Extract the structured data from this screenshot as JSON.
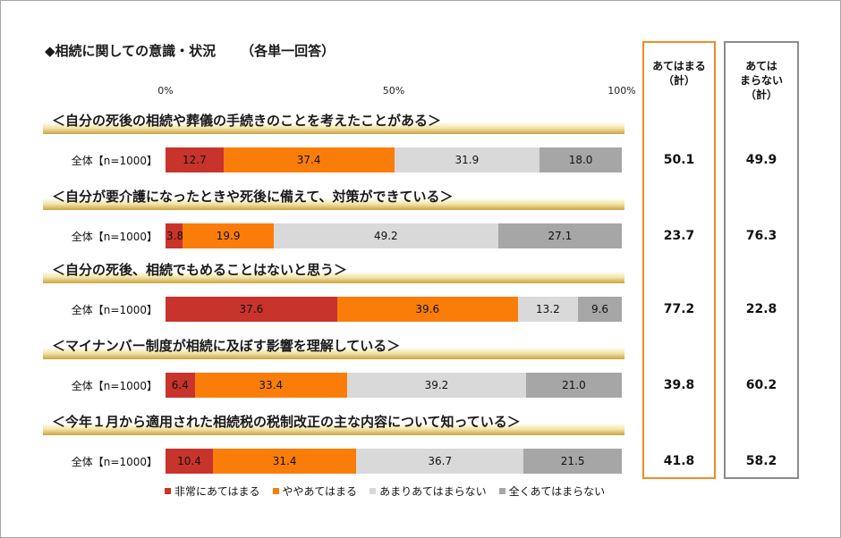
{
  "title": "◆相続に関しての意識・状況",
  "subtitle": "（各単一回答）",
  "summary_headers": {
    "applies_total": "あてはまる\n（計）",
    "not_applies_total": "あては\nまらない\n（計）"
  },
  "colors": {
    "very": "#c8342b",
    "somewhat": "#fa7d0a",
    "not_much": "#d9d9d9",
    "not_at_all": "#a6a6a6",
    "applies_border": "#f08a2a",
    "not_applies_border": "#8c8c8c"
  },
  "chart_data": {
    "type": "bar",
    "orientation": "horizontal-stacked-100",
    "xlim": [
      0,
      100
    ],
    "ticks": [
      "0%",
      "50%",
      "100%"
    ],
    "legend": [
      "非常にあてはまる",
      "ややあてはまる",
      "あまりあてはまらない",
      "全くあてはまらない"
    ],
    "legend_position": "bottom",
    "categories": [
      "＜自分の死後の相続や葬儀の手続きのことを考えたことがある＞",
      "＜自分が要介護になったときや死後に備えて、対策ができている＞",
      "＜自分の死後、相続でもめることはないと思う＞",
      "＜マイナンバー制度が相続に及ぼす影響を理解している＞",
      "＜今年１月から適用された相続税の税制改正の主な内容について知っている＞"
    ],
    "row_label": "全体【n=1000】",
    "series": [
      {
        "name": "非常にあてはまる",
        "values": [
          12.7,
          3.8,
          37.6,
          6.4,
          10.4
        ]
      },
      {
        "name": "ややあてはまる",
        "values": [
          37.4,
          19.9,
          39.6,
          33.4,
          31.4
        ]
      },
      {
        "name": "あまりあてはまらない",
        "values": [
          31.9,
          49.2,
          13.2,
          39.2,
          36.7
        ]
      },
      {
        "name": "全くあてはまらない",
        "values": [
          18.0,
          27.1,
          9.6,
          21.0,
          21.5
        ]
      }
    ],
    "applies_total": [
      50.1,
      23.7,
      77.2,
      39.8,
      41.8
    ],
    "not_applies_total": [
      49.9,
      76.3,
      22.8,
      60.2,
      58.2
    ]
  }
}
